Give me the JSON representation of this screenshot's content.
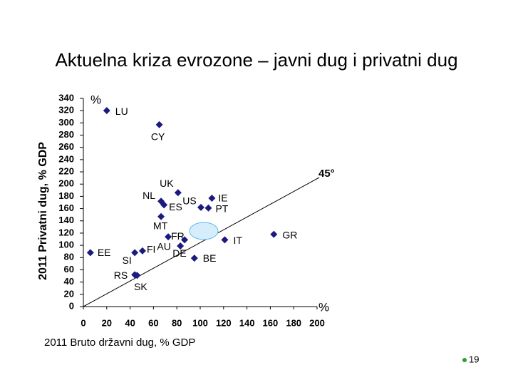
{
  "chart_data": {
    "type": "scatter",
    "title": "Aktuelna kriza evrozone – javni dug i privatni dug",
    "x_label": "2011 Bruto državni dug, % GDP",
    "y_label": "2011 Privatni dug, % GDP",
    "x_unit": "%",
    "y_unit": "%",
    "line_label": "45°",
    "color": "#1a1a80",
    "xlim": [
      0,
      200
    ],
    "xticks": [
      0,
      20,
      40,
      60,
      80,
      100,
      120,
      140,
      160,
      180,
      200
    ],
    "ylim": [
      0,
      340
    ],
    "yticks": [
      0,
      20,
      40,
      60,
      80,
      100,
      120,
      140,
      160,
      180,
      200,
      220,
      240,
      260,
      280,
      300,
      320,
      340
    ],
    "points": [
      {
        "label": "LU",
        "x": 20,
        "y": 320
      },
      {
        "label": "CY",
        "x": 65,
        "y": 297
      },
      {
        "label": "UK",
        "x": 81,
        "y": 186
      },
      {
        "label": "NL",
        "x": 66.5,
        "y": 172
      },
      {
        "label": "ES",
        "x": 69,
        "y": 166
      },
      {
        "label": "US",
        "x": 100.6,
        "y": 162
      },
      {
        "label": "IE",
        "x": 110,
        "y": 177
      },
      {
        "label": "PT",
        "x": 107,
        "y": 161
      },
      {
        "label": "MT",
        "x": 66.5,
        "y": 147
      },
      {
        "label": "FR",
        "x": 72.6,
        "y": 114
      },
      {
        "label": "AU",
        "x": 83,
        "y": 99
      },
      {
        "label": "DE",
        "x": 86.6,
        "y": 109
      },
      {
        "label": "FI",
        "x": 50.6,
        "y": 91
      },
      {
        "label": "SI",
        "x": 44,
        "y": 88
      },
      {
        "label": "IT",
        "x": 121,
        "y": 109
      },
      {
        "label": "GR",
        "x": 163,
        "y": 118
      },
      {
        "label": "BE",
        "x": 95,
        "y": 79
      },
      {
        "label": "EE",
        "x": 6,
        "y": 88
      },
      {
        "label": "RS",
        "x": 44,
        "y": 52
      },
      {
        "label": "SK",
        "x": 46,
        "y": 51
      }
    ]
  },
  "page_number": "19"
}
